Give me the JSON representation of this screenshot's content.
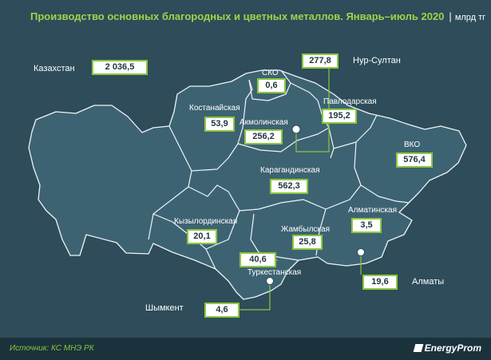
{
  "header": {
    "title": "Производство основных благородных и цветных металлов. Январь–июль 2020",
    "separator": "|",
    "unit": "млрд тг"
  },
  "national": {
    "label": "Казахстан",
    "value": "2 036,5"
  },
  "regions": {
    "sko": {
      "label": "СКО",
      "value": "0,6"
    },
    "kostanay": {
      "label": "Костанайская",
      "value": "53,9"
    },
    "akmola": {
      "label": "Акмолинская",
      "value": "256,2"
    },
    "pavlodar": {
      "label": "Павлодарская",
      "value": "195,2"
    },
    "vko": {
      "label": "ВКО",
      "value": "576,4"
    },
    "karaganda": {
      "label": "Карагандинская",
      "value": "562,3"
    },
    "kyzylorda": {
      "label": "Кызылординская",
      "value": "20,1"
    },
    "zhambyl": {
      "label": "Жамбылская",
      "value": "25,8"
    },
    "almaty_region": {
      "label": "Алматинская",
      "value": "3,5"
    },
    "turkestan": {
      "label": "Туркестанская",
      "value": "40,6"
    }
  },
  "cities": {
    "nur_sultan": {
      "label": "Нур-Султан",
      "value": "277,8"
    },
    "almaty": {
      "label": "Алматы",
      "value": "19,6"
    },
    "shymkent": {
      "label": "Шымкент",
      "value": "4,6"
    }
  },
  "footer": {
    "source": "Источник: КС МНЭ РК",
    "brand": "EnergyProm"
  },
  "colors": {
    "background": "#2e4c59",
    "region_fill": "#3d6373",
    "accent": "#8cc63f",
    "title": "#9fd34a"
  }
}
